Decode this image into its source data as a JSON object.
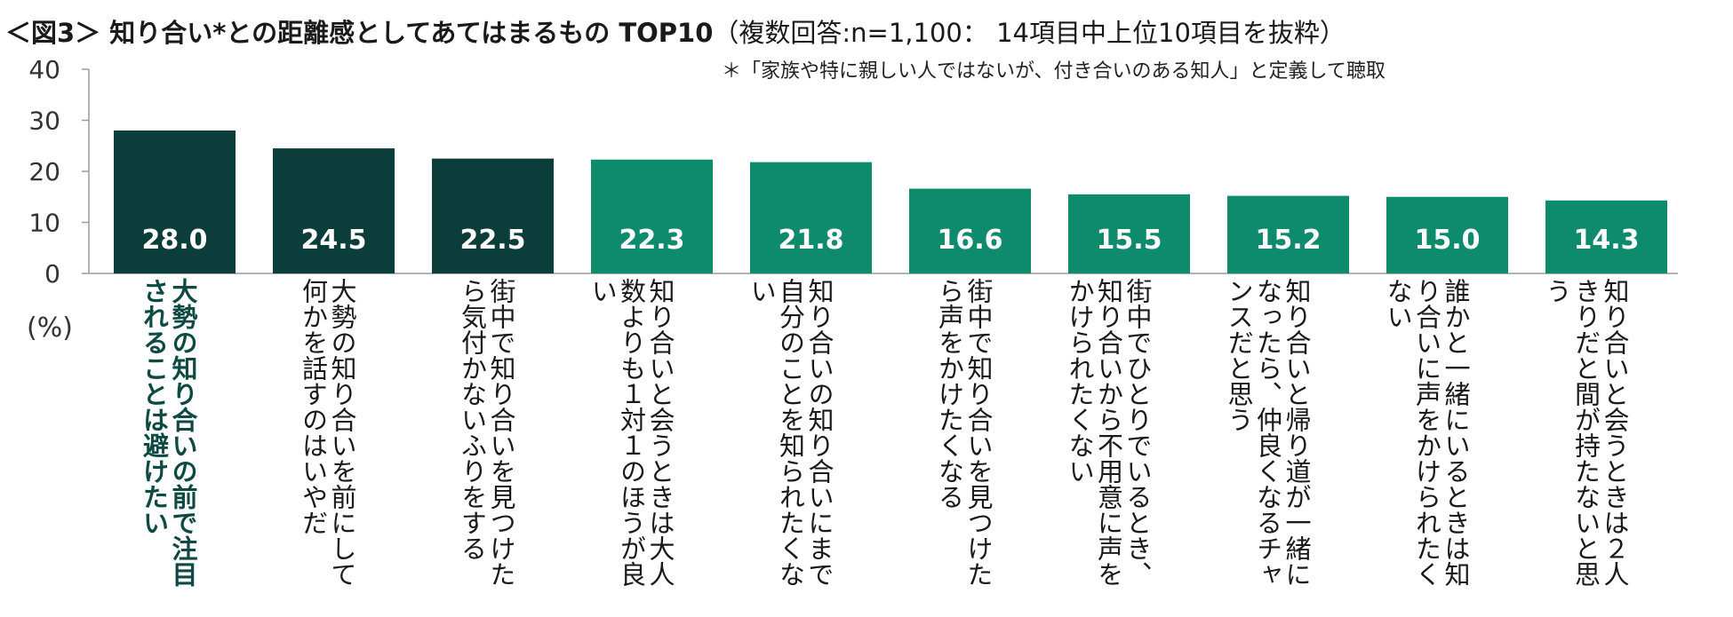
{
  "title": {
    "main": "＜図3＞ 知り合い*との距離感としてあてはまるもの TOP10",
    "sub": "（複数回答:n=1,100： 14項目中上位10項目を抜粋）"
  },
  "footnote": "＊「家族や特に親しい人ではないが、付き合いのある知人」と定義して聴取",
  "chart_data": {
    "type": "bar",
    "title": "＜図3＞ 知り合い*との距離感としてあてはまるもの TOP10",
    "ylabel": "(%)",
    "ylim": [
      0,
      40
    ],
    "yticks": [
      0,
      10,
      20,
      30,
      40
    ],
    "grid": false,
    "categories": [
      "大勢の知り合いの前で注目されることは避けたい",
      "大勢の知り合いを前にして何かを話すのはいやだ",
      "街中で知り合いを見つけたら気付かないふりをする",
      "知り合いと会うときは大人数よりも１対１のほうが良い",
      "知り合いの知り合いにまで自分のことを知られたくない",
      "街中で知り合いを見つけたら声をかけたくなる",
      "街中でひとりでいるとき、知り合いから不用意に声をかけられたくない",
      "知り合いと帰り道が一緒になったら、仲良くなるチャンスだと思う",
      "誰かと一緒にいるときは知り合いに声をかけられたくない",
      "知り合いと会うときは２人きりだと間が持たないと思う"
    ],
    "values": [
      28.0,
      24.5,
      22.5,
      22.3,
      21.8,
      16.6,
      15.5,
      15.2,
      15.0,
      14.3
    ],
    "value_labels": [
      "28.0",
      "24.5",
      "22.5",
      "22.3",
      "21.8",
      "16.6",
      "15.5",
      "15.2",
      "15.0",
      "14.3"
    ],
    "colors": [
      "#0b3d3a",
      "#0b3d3a",
      "#0b3d3a",
      "#0e8a6c",
      "#0e8a6c",
      "#0e8a6c",
      "#0e8a6c",
      "#0e8a6c",
      "#0e8a6c",
      "#0e8a6c"
    ],
    "highlight_index": 0
  },
  "colors": {
    "dark": "#0b3d3a",
    "accent": "#0e8a6c",
    "highlight_text": "#0e4a43"
  }
}
